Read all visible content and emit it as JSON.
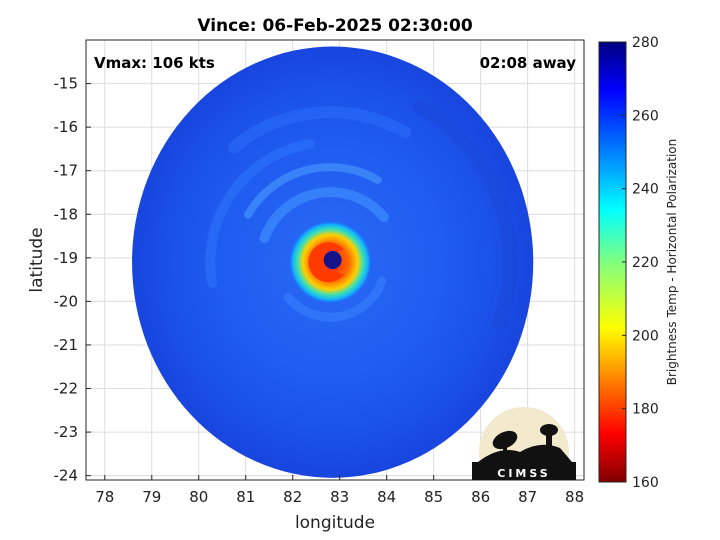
{
  "chart_data": {
    "type": "heatmap",
    "title": "Vince: 06-Feb-2025 02:30:00",
    "xlabel": "longitude",
    "ylabel": "latitude",
    "xlim": [
      77.6,
      88.2
    ],
    "ylim": [
      -24.1,
      -14.0
    ],
    "xticks": [
      78,
      79,
      80,
      81,
      82,
      83,
      84,
      85,
      86,
      87,
      88
    ],
    "yticks": [
      -15,
      -16,
      -17,
      -18,
      -19,
      -20,
      -21,
      -22,
      -23,
      -24
    ],
    "grid": true,
    "annotations": {
      "left": "Vmax: 106 kts",
      "right": "02:08 away"
    },
    "colorbar": {
      "label": "Brightness Temp - Horizontal Polarization",
      "range": [
        160,
        280
      ],
      "ticks": [
        160,
        180,
        200,
        220,
        240,
        260,
        280
      ],
      "colormap": "jet"
    },
    "storm_center": {
      "lon": 82.8,
      "lat": -19.1
    },
    "eye_center": {
      "lon": 82.85,
      "lat": -19.05
    },
    "swath_center": {
      "lon": 82.85,
      "lat": -19.1
    },
    "logo": "CIMSS",
    "colors": {
      "background_field": "#2060ff",
      "warm_core": "#ff3000",
      "eye": "#10108a"
    }
  }
}
